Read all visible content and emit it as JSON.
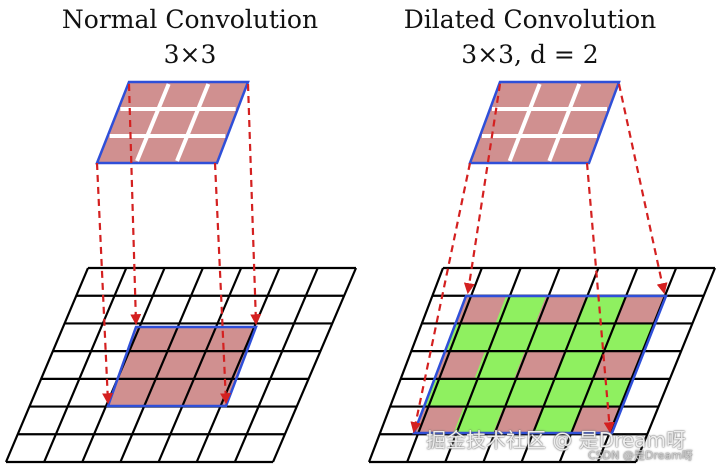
{
  "left_panel": {
    "title": "Normal Convolution",
    "subtitle": "3×3"
  },
  "right_panel": {
    "title": "Dilated Convolution",
    "subtitle": "3×3, d = 2"
  },
  "colors": {
    "kernel_fill": "#d09090",
    "highlight_fill": "#d09090",
    "dilated_gap_fill": "#8ff060",
    "outline": "#2f4fd8",
    "arrow": "#d42020"
  },
  "watermark": {
    "main": "掘金技术社区 @ 是Dream呀",
    "small": "CSDN @是Dream呀"
  }
}
